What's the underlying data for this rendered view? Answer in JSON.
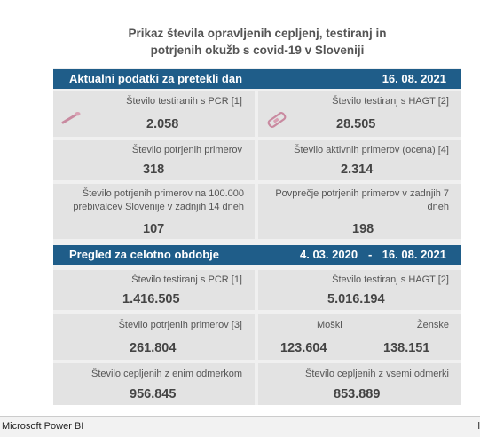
{
  "title_line1": "Prikaz števila opravljenih cepljenj, testiranj in",
  "title_line2": "potrjenih okužb s covid-19 v Sloveniji",
  "section1": {
    "heading": "Aktualni podatki za pretekli dan",
    "date": "16. 08. 2021",
    "pcr": {
      "label": "Število testiranih s PCR [1]",
      "value": "2.058",
      "icon": "pcr-swab-icon"
    },
    "hagt": {
      "label": "Število testiranj s HAGT [2]",
      "value": "28.505",
      "icon": "antigen-test-icon"
    },
    "confirmed": {
      "label": "Število potrjenih primerov",
      "value": "318"
    },
    "active": {
      "label": "Število aktivnih primerov (ocena) [4]",
      "value": "2.314"
    },
    "per100k": {
      "line1": "Število potrjenih primerov na 100.000",
      "line2": "prebivalcev Slovenije v zadnjih 14 dneh",
      "value": "107"
    },
    "avg7": {
      "line1": "Povprečje potrjenih primerov v zadnjih 7",
      "line2": "dneh",
      "value": "198"
    }
  },
  "section2": {
    "heading": "Pregled za celotno obdobje",
    "date_from": "4. 03. 2020",
    "dash": "-",
    "date_to": "16. 08. 2021",
    "pcr": {
      "label": "Število testiranj s PCR [1]",
      "value": "1.416.505"
    },
    "hagt": {
      "label": "Število testiranj s HAGT [2]",
      "value": "5.016.194"
    },
    "confirmed": {
      "label": "Število potrjenih primerov [3]",
      "value": "261.804"
    },
    "men": {
      "label": "Moški",
      "value": "123.604"
    },
    "women": {
      "label": "Ženske",
      "value": "138.151"
    },
    "vacc1": {
      "label": "Število cepljenih z enim odmerkom",
      "value": "956.845"
    },
    "vacc_all": {
      "label": "Število cepljenih z vsemi odmerki",
      "value": "853.889"
    }
  },
  "footer": {
    "app": "Microsoft Power BI",
    "edge": "l"
  },
  "colors": {
    "header_bar": "#1f5d89",
    "panel": "#f0f0f0",
    "cell": "#e3e3e3",
    "icon": "#c98aa0"
  }
}
